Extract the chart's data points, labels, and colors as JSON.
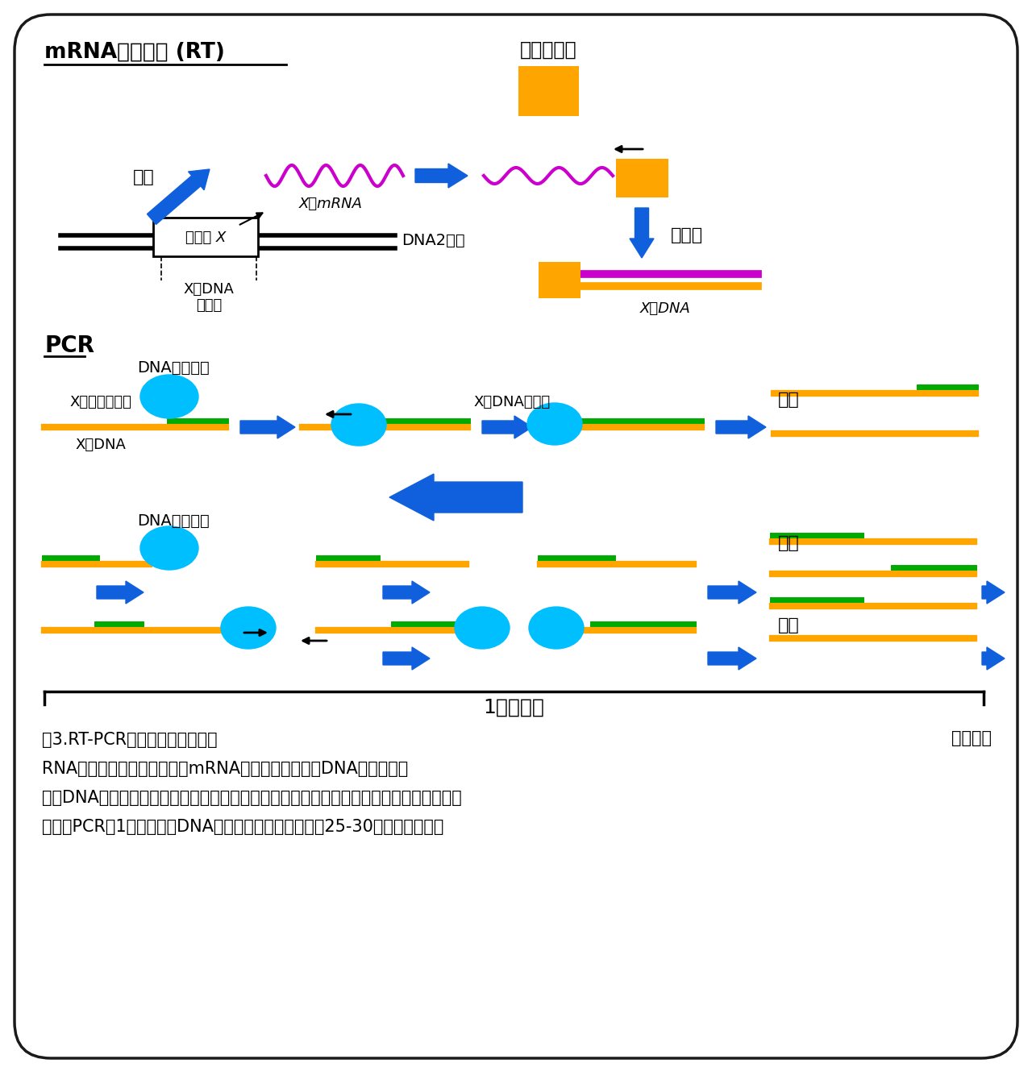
{
  "bg_color": "#ffffff",
  "border_color": "#1a1a1a",
  "orange_color": "#FFA500",
  "green_color": "#00AA00",
  "magenta_color": "#CC00CC",
  "blue_arrow_color": "#1060DD",
  "cyan_color": "#00BFFF",
  "black": "#000000",
  "title": "mRNAの逆転写 (RT)",
  "pcr_label": "PCR",
  "label_gyaku": "逆転写酯素",
  "label_tensha": "転写",
  "label_gene": "遠伝子 X",
  "label_dna2": "DNA2本鎖",
  "label_xmrna": "XのmRNA",
  "label_gyaku2": "逆転写",
  "label_xdna_left1": "XのDNA",
  "label_xdna_left2": "相補鎖",
  "label_xdna_right": "XのDNA",
  "label_dna_synth": "DNA合成酯素",
  "label_primer": "Xのプライマー",
  "label_xdna2": "XのDNA",
  "label_comp": "XのDNA相補鎖",
  "label_bunri": "分離",
  "label_1cycle": "1サイクル",
  "label_repeat": "繰り返す",
  "caption1": "図3.RT-PCRによる遠伝子の検出",
  "caption2": "RNAから逆転写酯素により、mRNAから逆転写を行いDNAをつくる。",
  "caption3": "このDNAと目的の遠伝子の配列の一部を持つプライマーを使用して、目的の遠伝子を増幅",
  "caption4": "する。PCRは1サイクルでDNAの量は倍になる。通常は25-30サイクル行う。"
}
